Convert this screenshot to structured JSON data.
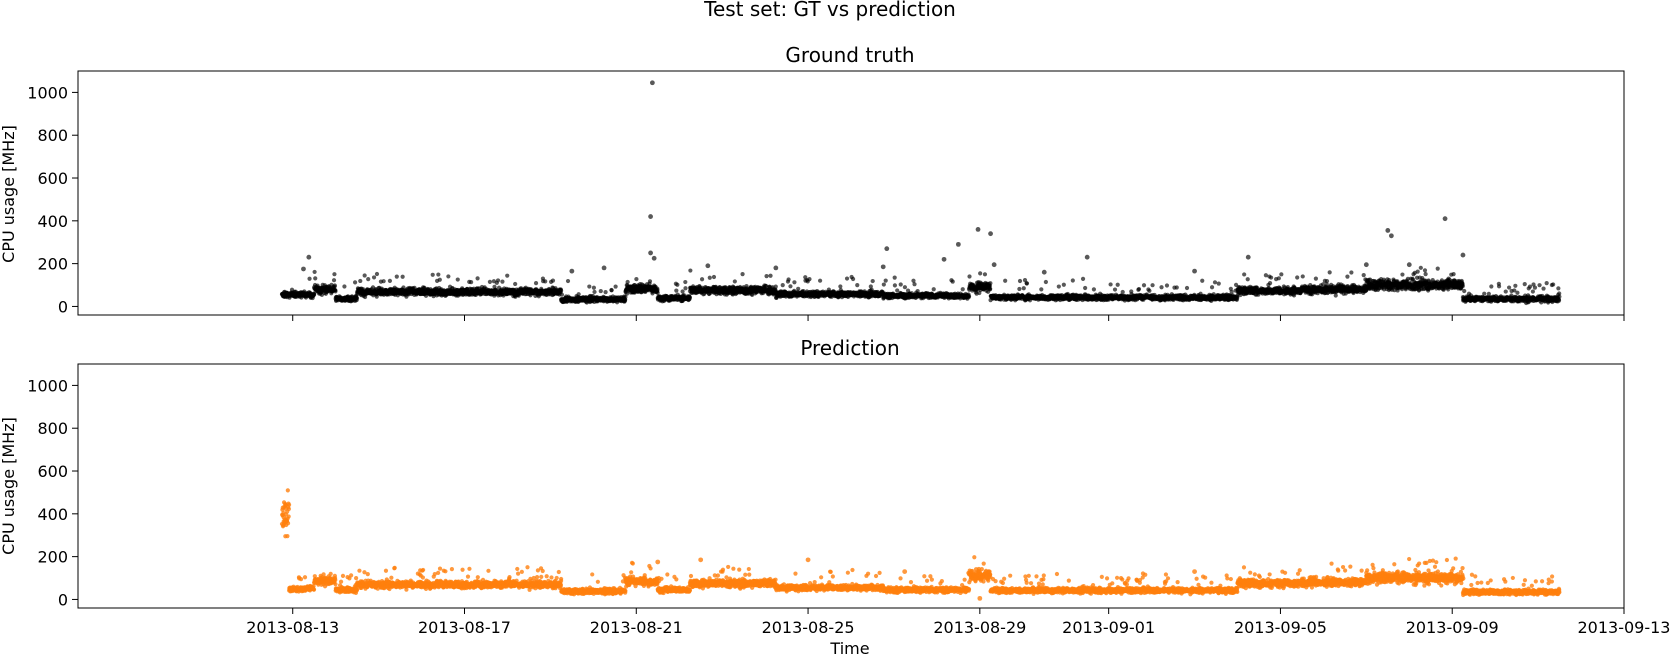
{
  "figure": {
    "suptitle": "Test set: GT vs prediction"
  },
  "chart_data": [
    {
      "type": "scatter",
      "title": "Ground truth",
      "xlabel": "",
      "ylabel": "CPU usage [MHz]",
      "x_type": "date",
      "xlim": [
        "2013-08-08",
        "2013-09-13"
      ],
      "ylim": [
        -40,
        1100
      ],
      "xticks": [
        "2013-08-13",
        "2013-08-17",
        "2013-08-21",
        "2013-08-25",
        "2013-08-29",
        "2013-09-01",
        "2013-09-05",
        "2013-09-09",
        "2013-09-13"
      ],
      "xtick_labels_visible": false,
      "yticks": [
        0,
        200,
        400,
        600,
        800,
        1000
      ],
      "grid": false,
      "color": "#000000",
      "marker_opacity": 0.65,
      "x_start": "2013-08-12T18:00",
      "x_end": "2013-09-11T12:00",
      "baseline_segments": [
        {
          "from": "2013-08-12T18:00",
          "to": "2013-08-13T12:00",
          "level": 55
        },
        {
          "from": "2013-08-13T12:00",
          "to": "2013-08-14T00:00",
          "level": 80
        },
        {
          "from": "2013-08-14T00:00",
          "to": "2013-08-14T12:00",
          "level": 35
        },
        {
          "from": "2013-08-14T12:00",
          "to": "2013-08-19T06:00",
          "level": 68
        },
        {
          "from": "2013-08-19T06:00",
          "to": "2013-08-20T18:00",
          "level": 33
        },
        {
          "from": "2013-08-20T18:00",
          "to": "2013-08-21T12:00",
          "level": 82
        },
        {
          "from": "2013-08-21T12:00",
          "to": "2013-08-22T06:00",
          "level": 38
        },
        {
          "from": "2013-08-22T06:00",
          "to": "2013-08-24T06:00",
          "level": 75
        },
        {
          "from": "2013-08-24T06:00",
          "to": "2013-08-26T18:00",
          "level": 58
        },
        {
          "from": "2013-08-26T18:00",
          "to": "2013-08-28T18:00",
          "level": 50
        },
        {
          "from": "2013-08-28T18:00",
          "to": "2013-08-29T06:00",
          "level": 90
        },
        {
          "from": "2013-08-29T06:00",
          "to": "2013-09-04T00:00",
          "level": 42
        },
        {
          "from": "2013-09-04T00:00",
          "to": "2013-09-05T12:00",
          "level": 72
        },
        {
          "from": "2013-09-05T12:00",
          "to": "2013-09-07T00:00",
          "level": 80
        },
        {
          "from": "2013-09-07T00:00",
          "to": "2013-09-09T06:00",
          "level": 100
        },
        {
          "from": "2013-09-09T06:00",
          "to": "2013-09-11T12:00",
          "level": 35
        }
      ],
      "outliers": [
        {
          "x": "2013-08-13T09:00",
          "y": 230
        },
        {
          "x": "2013-08-13T06:00",
          "y": 175
        },
        {
          "x": "2013-08-19T12:00",
          "y": 165
        },
        {
          "x": "2013-08-20T06:00",
          "y": 180
        },
        {
          "x": "2013-08-21T09:00",
          "y": 1045
        },
        {
          "x": "2013-08-21T08:00",
          "y": 420
        },
        {
          "x": "2013-08-21T08:00",
          "y": 250
        },
        {
          "x": "2013-08-21T10:00",
          "y": 225
        },
        {
          "x": "2013-08-22T16:00",
          "y": 190
        },
        {
          "x": "2013-08-24T06:00",
          "y": 180
        },
        {
          "x": "2013-08-26T20:00",
          "y": 270
        },
        {
          "x": "2013-08-26T18:00",
          "y": 185
        },
        {
          "x": "2013-08-28T04:00",
          "y": 220
        },
        {
          "x": "2013-08-28T12:00",
          "y": 290
        },
        {
          "x": "2013-08-28T23:00",
          "y": 360
        },
        {
          "x": "2013-08-29T06:00",
          "y": 340
        },
        {
          "x": "2013-08-29T08:00",
          "y": 195
        },
        {
          "x": "2013-08-30T12:00",
          "y": 160
        },
        {
          "x": "2013-08-31T12:00",
          "y": 230
        },
        {
          "x": "2013-09-03T00:00",
          "y": 165
        },
        {
          "x": "2013-09-04T06:00",
          "y": 230
        },
        {
          "x": "2013-09-07T12:00",
          "y": 355
        },
        {
          "x": "2013-09-07T14:00",
          "y": 330
        },
        {
          "x": "2013-09-07T00:00",
          "y": 195
        },
        {
          "x": "2013-09-08T00:00",
          "y": 195
        },
        {
          "x": "2013-09-08T20:00",
          "y": 410
        },
        {
          "x": "2013-09-09T06:00",
          "y": 240
        }
      ]
    },
    {
      "type": "scatter",
      "title": "Prediction",
      "xlabel": "Time",
      "ylabel": "CPU usage [MHz]",
      "x_type": "date",
      "xlim": [
        "2013-08-08",
        "2013-09-13"
      ],
      "ylim": [
        -40,
        1100
      ],
      "xticks": [
        "2013-08-13",
        "2013-08-17",
        "2013-08-21",
        "2013-08-25",
        "2013-08-29",
        "2013-09-01",
        "2013-09-05",
        "2013-09-09",
        "2013-09-13"
      ],
      "xtick_labels_visible": true,
      "yticks": [
        0,
        200,
        400,
        600,
        800,
        1000
      ],
      "grid": false,
      "color": "#ff7f0e",
      "marker_opacity": 0.8,
      "x_start": "2013-08-12T18:00",
      "x_end": "2013-09-11T12:00",
      "baseline_segments": [
        {
          "from": "2013-08-12T18:00",
          "to": "2013-08-12T22:00",
          "level": 400
        },
        {
          "from": "2013-08-12T22:00",
          "to": "2013-08-13T12:00",
          "level": 50
        },
        {
          "from": "2013-08-13T12:00",
          "to": "2013-08-14T00:00",
          "level": 90
        },
        {
          "from": "2013-08-14T00:00",
          "to": "2013-08-14T12:00",
          "level": 45
        },
        {
          "from": "2013-08-14T12:00",
          "to": "2013-08-19T06:00",
          "level": 70
        },
        {
          "from": "2013-08-19T06:00",
          "to": "2013-08-20T18:00",
          "level": 38
        },
        {
          "from": "2013-08-20T18:00",
          "to": "2013-08-21T12:00",
          "level": 85
        },
        {
          "from": "2013-08-21T12:00",
          "to": "2013-08-22T06:00",
          "level": 45
        },
        {
          "from": "2013-08-22T06:00",
          "to": "2013-08-24T06:00",
          "level": 75
        },
        {
          "from": "2013-08-24T06:00",
          "to": "2013-08-26T18:00",
          "level": 55
        },
        {
          "from": "2013-08-26T18:00",
          "to": "2013-08-28T18:00",
          "level": 45
        },
        {
          "from": "2013-08-28T18:00",
          "to": "2013-08-29T06:00",
          "level": 110
        },
        {
          "from": "2013-08-29T06:00",
          "to": "2013-09-04T00:00",
          "level": 42
        },
        {
          "from": "2013-09-04T00:00",
          "to": "2013-09-05T12:00",
          "level": 75
        },
        {
          "from": "2013-09-05T12:00",
          "to": "2013-09-07T00:00",
          "level": 80
        },
        {
          "from": "2013-09-07T00:00",
          "to": "2013-09-09T06:00",
          "level": 100
        },
        {
          "from": "2013-09-09T06:00",
          "to": "2013-09-11T12:00",
          "level": 35
        }
      ],
      "outliers": [
        {
          "x": "2013-08-12T20:00",
          "y": 425
        },
        {
          "x": "2013-08-12T19:00",
          "y": 385
        },
        {
          "x": "2013-08-21T12:00",
          "y": 175
        },
        {
          "x": "2013-08-22T12:00",
          "y": 185
        },
        {
          "x": "2013-08-25T00:00",
          "y": 185
        },
        {
          "x": "2013-08-27T06:00",
          "y": 130
        },
        {
          "x": "2013-08-28T22:00",
          "y": 140
        },
        {
          "x": "2013-08-29T00:00",
          "y": 5
        },
        {
          "x": "2013-09-03T00:00",
          "y": 130
        }
      ]
    }
  ]
}
